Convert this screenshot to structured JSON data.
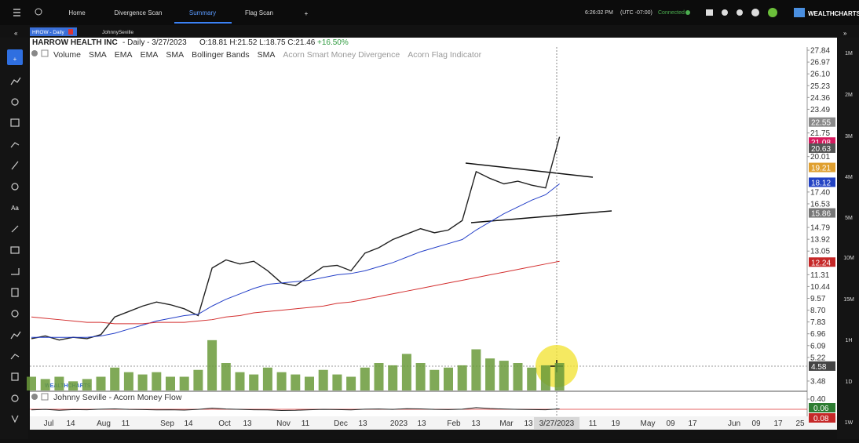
{
  "top_nav": {
    "tabs": [
      "Home",
      "Divergence Scan",
      "Summary",
      "Flag Scan"
    ],
    "time": "6:26:02 PM",
    "timezone": "(UTC -07:00)",
    "status": "Connected",
    "brand": "WEALTHCHARTS"
  },
  "symbol_tabs": [
    "HROW - Daily",
    "JohnnySeville"
  ],
  "header": {
    "name": "HARROW HEALTH INC",
    "interval": "- Daily - 3/27/2023",
    "ohlc": "O:18.81 H:21.52 L:18.75 C:21.46",
    "change": "+16.50%"
  },
  "indicators": [
    "Volume",
    "SMA",
    "EMA",
    "EMA",
    "SMA",
    "Bollinger Bands",
    "SMA",
    "Acorn Smart Money Divergence",
    "Acorn Flag Indicator"
  ],
  "price_chart": {
    "ylim": [
      2.67,
      27.96
    ],
    "yticks": [
      27.84,
      26.97,
      {
        "value": 26.1,
        "label": "26.10"
      },
      25.23,
      24.36,
      23.49,
      21.75,
      20.01,
      {
        "value": 17.4,
        "label": "17.40"
      },
      16.53,
      14.79,
      13.92,
      13.05,
      11.31,
      10.44,
      9.57,
      {
        "value": 8.7,
        "label": "8.70"
      },
      7.83,
      6.96,
      6.09,
      5.22,
      3.48
    ],
    "badges": [
      {
        "value": 22.55,
        "color": "#8a8a8a"
      },
      {
        "value": 21.08,
        "color": "#d81b60"
      },
      {
        "value": 20.63,
        "color": "#555555"
      },
      {
        "value": 19.21,
        "color": "#e0a030"
      },
      {
        "value": 18.12,
        "color": "#2343c4"
      },
      {
        "value": 15.86,
        "color": "#777777"
      },
      {
        "value": 12.24,
        "color": "#c62828"
      },
      {
        "value": 4.58,
        "color": "#444444"
      }
    ],
    "series": [
      {
        "name": "Close",
        "color": "#222222",
        "values": [
          6.6,
          6.8,
          6.5,
          6.7,
          6.6,
          6.9,
          8.2,
          8.6,
          9.0,
          9.3,
          9.1,
          8.8,
          8.3,
          11.8,
          12.4,
          12.1,
          12.3,
          11.6,
          10.7,
          10.5,
          11.2,
          11.9,
          12.0,
          11.6,
          12.9,
          13.3,
          13.9,
          14.3,
          14.7,
          14.4,
          14.6,
          15.3,
          18.9,
          18.4,
          18.0,
          18.2,
          17.9,
          17.7,
          21.46
        ]
      },
      {
        "name": "SMA",
        "color": "#2540c8",
        "values": [
          6.7,
          6.7,
          6.7,
          6.7,
          6.7,
          6.8,
          7.0,
          7.3,
          7.6,
          7.9,
          8.1,
          8.3,
          8.4,
          9.0,
          9.5,
          9.9,
          10.3,
          10.6,
          10.7,
          10.8,
          10.9,
          11.1,
          11.3,
          11.4,
          11.6,
          11.9,
          12.2,
          12.6,
          13.0,
          13.3,
          13.6,
          13.9,
          14.6,
          15.2,
          15.8,
          16.3,
          16.8,
          17.2,
          18.0
        ]
      },
      {
        "name": "SMA",
        "color": "#d32f2f",
        "values": [
          8.2,
          8.1,
          8.0,
          7.9,
          7.8,
          7.8,
          7.7,
          7.7,
          7.7,
          7.8,
          7.8,
          7.8,
          7.9,
          8.0,
          8.2,
          8.3,
          8.5,
          8.6,
          8.7,
          8.8,
          8.9,
          9.0,
          9.2,
          9.3,
          9.5,
          9.7,
          9.9,
          10.1,
          10.3,
          10.5,
          10.7,
          10.9,
          11.1,
          11.3,
          11.5,
          11.7,
          11.9,
          12.1,
          12.3
        ]
      }
    ],
    "volume": {
      "color": "#6a9a3a",
      "vlim": [
        0,
        1.2
      ],
      "values": [
        0.3,
        0.25,
        0.3,
        0.2,
        0.25,
        0.3,
        0.5,
        0.4,
        0.35,
        0.4,
        0.3,
        0.3,
        0.45,
        1.1,
        0.6,
        0.4,
        0.35,
        0.5,
        0.4,
        0.35,
        0.3,
        0.45,
        0.35,
        0.3,
        0.5,
        0.6,
        0.55,
        0.8,
        0.6,
        0.45,
        0.5,
        0.55,
        0.9,
        0.7,
        0.65,
        0.6,
        0.5,
        0.55,
        0.6
      ]
    }
  },
  "x_labels": [
    "Jul",
    "14",
    "Aug",
    "11",
    "Sep",
    "14",
    "Oct",
    "13",
    "Nov",
    "11",
    "Dec",
    "13",
    "2023",
    "13",
    "Feb",
    "13",
    "Mar",
    "13",
    "3/27/2023",
    "11",
    "19",
    "May",
    "09",
    "17",
    "Jun",
    "09",
    "17",
    "25"
  ],
  "lower_pane": {
    "title": "Johnny Seville - Acorn Money Flow",
    "ylim": [
      -0.3,
      0.5
    ],
    "tick": {
      "value": 0.4,
      "label": "0.40"
    },
    "badges": [
      {
        "value": 0.06,
        "color": "#2e7d32"
      },
      {
        "value": 0.08,
        "color": "#c62828"
      }
    ],
    "values": [
      0.02,
      0.05,
      0.0,
      0.04,
      0.03,
      0.06,
      0.08,
      0.05,
      0.04,
      0.02,
      0.03,
      0.01,
      0.05,
      0.12,
      0.07,
      0.05,
      0.03,
      0.02,
      -0.01,
      0.0,
      0.03,
      0.05,
      0.04,
      0.02,
      0.06,
      0.07,
      0.05,
      0.09,
      0.08,
      0.05,
      0.04,
      0.06,
      0.15,
      0.1,
      0.07,
      0.05,
      0.04,
      0.03,
      0.08
    ]
  },
  "timeframes": [
    "1M",
    "2M",
    "3M",
    "4M",
    "5M",
    "10M",
    "15M",
    "1H",
    "1D",
    "1W"
  ]
}
